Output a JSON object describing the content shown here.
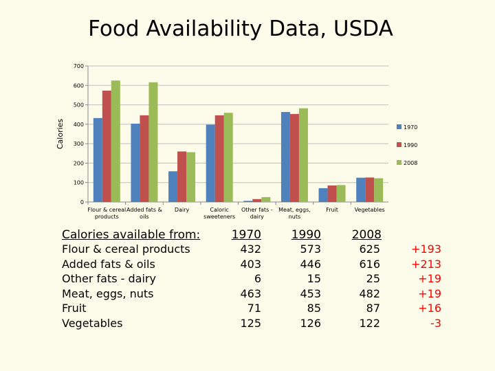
{
  "title": "Food Availability Data, USDA",
  "chart_data": {
    "type": "bar",
    "ylabel": "Calories",
    "ylim": [
      0,
      700
    ],
    "yticks": [
      0,
      100,
      200,
      300,
      400,
      500,
      600,
      700
    ],
    "grid": true,
    "legend_position": "right",
    "categories": [
      [
        "Flour & cereal",
        "products"
      ],
      [
        "Added fats &",
        "oils"
      ],
      [
        "Dairy"
      ],
      [
        "Caloric",
        "sweeteners"
      ],
      [
        "Other fats -",
        "dairy"
      ],
      [
        "Meat, eggs,",
        "nuts"
      ],
      [
        "Fruit"
      ],
      [
        "Vegetables"
      ]
    ],
    "series": [
      {
        "name": "1970",
        "color": "#4f81bd",
        "values": [
          432,
          403,
          158,
          398,
          6,
          463,
          71,
          125
        ]
      },
      {
        "name": "1990",
        "color": "#c0504d",
        "values": [
          573,
          446,
          260,
          446,
          15,
          453,
          85,
          126
        ]
      },
      {
        "name": "2008",
        "color": "#9bbb59",
        "values": [
          625,
          616,
          256,
          459,
          25,
          482,
          87,
          122
        ]
      }
    ]
  },
  "table": {
    "header_label": "Calories available from:",
    "years": [
      "1970",
      "1990",
      "2008"
    ],
    "rows": [
      {
        "label": "Flour & cereal products",
        "v1970": "432",
        "v1990": "573",
        "v2008": "625",
        "change": "+193"
      },
      {
        "label": "Added fats & oils",
        "v1970": "403",
        "v1990": "446",
        "v2008": "616",
        "change": "+213"
      },
      {
        "label": "Other fats - dairy",
        "v1970": "6",
        "v1990": "15",
        "v2008": "25",
        "change": "+19"
      },
      {
        "label": "Meat, eggs, nuts",
        "v1970": "463",
        "v1990": "453",
        "v2008": "482",
        "change": "+19"
      },
      {
        "label": "Fruit",
        "v1970": "71",
        "v1990": "85",
        "v2008": "87",
        "change": "+16"
      },
      {
        "label": "Vegetables",
        "v1970": "125",
        "v1990": "126",
        "v2008": "122",
        "change": "-3"
      }
    ],
    "change_color": "#ff0000"
  }
}
